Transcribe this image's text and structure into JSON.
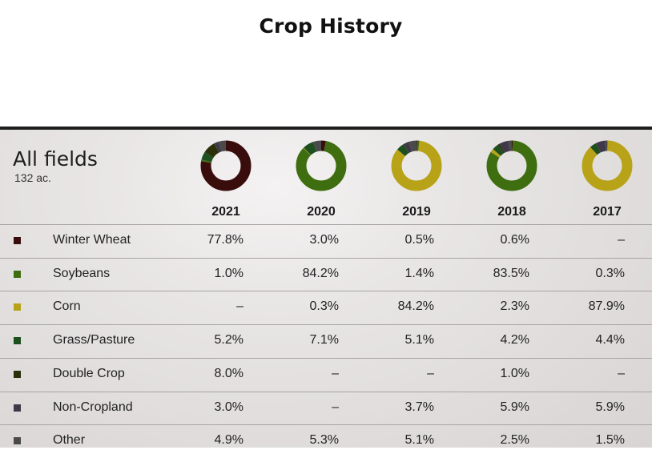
{
  "page": {
    "title": "Crop History"
  },
  "panel": {
    "heading": "All fields",
    "acres": "132 ac."
  },
  "years": [
    "2021",
    "2020",
    "2019",
    "2018",
    "2017"
  ],
  "colors": {
    "Winter Wheat": "#3a0d0d",
    "Soybeans": "#3e6e10",
    "Corn": "#b8a318",
    "Grass/Pasture": "#1e4f1e",
    "Double Crop": "#2a3008",
    "Non-Cropland": "#403848",
    "Other": "#4a4a4a"
  },
  "chart_data": {
    "type": "table",
    "title": "Crop History",
    "columns": [
      "2021",
      "2020",
      "2019",
      "2018",
      "2017"
    ],
    "rows": [
      {
        "crop": "Winter Wheat",
        "values": [
          "77.8%",
          "3.0%",
          "0.5%",
          "0.6%",
          "–"
        ]
      },
      {
        "crop": "Soybeans",
        "values": [
          "1.0%",
          "84.2%",
          "1.4%",
          "83.5%",
          "0.3%"
        ]
      },
      {
        "crop": "Corn",
        "values": [
          "–",
          "0.3%",
          "84.2%",
          "2.3%",
          "87.9%"
        ]
      },
      {
        "crop": "Grass/Pasture",
        "values": [
          "5.2%",
          "7.1%",
          "5.1%",
          "4.2%",
          "4.4%"
        ]
      },
      {
        "crop": "Double Crop",
        "values": [
          "8.0%",
          "–",
          "–",
          "1.0%",
          "–"
        ]
      },
      {
        "crop": "Non-Cropland",
        "values": [
          "3.0%",
          "–",
          "3.7%",
          "5.9%",
          "5.9%"
        ]
      },
      {
        "crop": "Other",
        "values": [
          "4.9%",
          "5.3%",
          "5.1%",
          "2.5%",
          "1.5%"
        ]
      }
    ],
    "donut_type": "pie"
  }
}
